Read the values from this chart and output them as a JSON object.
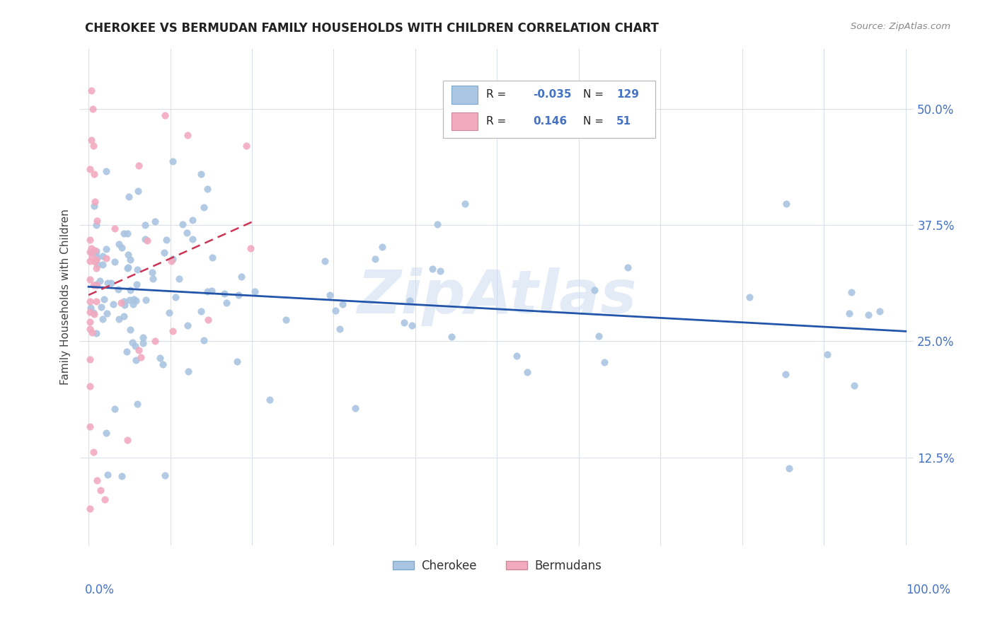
{
  "title": "CHEROKEE VS BERMUDAN FAMILY HOUSEHOLDS WITH CHILDREN CORRELATION CHART",
  "source": "Source: ZipAtlas.com",
  "ylabel": "Family Households with Children",
  "ytick_values": [
    0.125,
    0.25,
    0.375,
    0.5
  ],
  "ytick_labels": [
    "12.5%",
    "25.0%",
    "37.5%",
    "50.0%"
  ],
  "xlim": [
    -0.01,
    1.01
  ],
  "ylim": [
    0.03,
    0.565
  ],
  "legend_r_cherokee": "-0.035",
  "legend_n_cherokee": "129",
  "legend_r_bermudans": "0.146",
  "legend_n_bermudans": "51",
  "cherokee_color": "#aac5e2",
  "bermudans_color": "#f2aabf",
  "cherokee_line_color": "#2255aa",
  "bermudans_line_color": "#cc3355",
  "grid_color": "#d8dfe8",
  "title_color": "#222222",
  "source_color": "#888888",
  "tick_label_color": "#4472c4",
  "ylabel_color": "#444444",
  "watermark_color": "#c8d8ee",
  "watermark_alpha": 0.5
}
